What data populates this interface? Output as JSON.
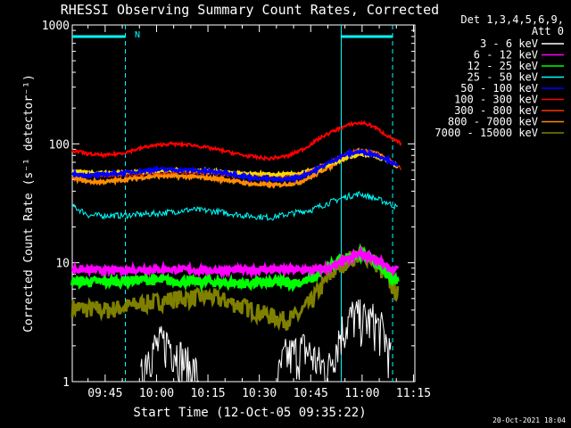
{
  "chart_data": {
    "type": "line",
    "title": "RHESSI Observing Summary Count Rates, Corrected",
    "xlabel": "Start Time (12-Oct-05 09:35:22)",
    "ylabel": "Corrected Count Rate (s⁻¹ detector⁻¹)",
    "yscale": "log",
    "ylim": [
      1,
      1000
    ],
    "xlim_minutes": [
      0,
      100
    ],
    "x_ticks": [
      {
        "min": 9.6,
        "label": "09:45"
      },
      {
        "min": 24.6,
        "label": "10:00"
      },
      {
        "min": 39.6,
        "label": "10:15"
      },
      {
        "min": 54.6,
        "label": "10:30"
      },
      {
        "min": 69.6,
        "label": "10:45"
      },
      {
        "min": 84.6,
        "label": "11:00"
      },
      {
        "min": 99.6,
        "label": "11:15"
      }
    ],
    "y_ticks": [
      {
        "value": 1,
        "label": "1"
      },
      {
        "value": 10,
        "label": "10"
      },
      {
        "value": 100,
        "label": "100"
      },
      {
        "value": 1000,
        "label": "1000"
      }
    ],
    "legend_header": [
      "Det 1,3,4,5,6,9,",
      "Att 0"
    ],
    "legend_position": "right",
    "flag_label": "N",
    "timestamp": "20-Oct-2021 18:04",
    "series": [
      {
        "name": "3 - 6 keV",
        "color": "#ffffff",
        "points": [
          [
            20,
            1
          ],
          [
            22,
            1.8
          ],
          [
            28,
            2.2
          ],
          [
            33,
            1.4
          ],
          [
            36,
            1.2
          ],
          [
            37,
            1
          ]
        ],
        "segments": [
          [
            [
              60,
              1
            ],
            [
              62,
              1.6
            ],
            [
              68,
              1.9
            ],
            [
              72,
              1.4
            ],
            [
              75,
              1.3
            ],
            [
              78,
              2.5
            ],
            [
              82,
              3.6
            ],
            [
              85,
              3.3
            ],
            [
              88,
              3.2
            ],
            [
              91,
              2.5
            ],
            [
              93,
              1.5
            ]
          ]
        ]
      },
      {
        "name": "6 - 12 keV",
        "color": "#ff00ff",
        "points": [
          [
            0,
            8.8
          ],
          [
            10,
            8.6
          ],
          [
            20,
            8.8
          ],
          [
            30,
            8.8
          ],
          [
            40,
            8.6
          ],
          [
            50,
            8.7
          ],
          [
            60,
            8.8
          ],
          [
            66,
            8.7
          ],
          [
            70,
            8.7
          ],
          [
            75,
            9.0
          ],
          [
            80,
            10.5
          ],
          [
            84,
            12.0
          ],
          [
            88,
            11.0
          ],
          [
            92,
            9.0
          ],
          [
            95,
            8.6
          ]
        ]
      },
      {
        "name": "12 - 25 keV",
        "color": "#00ff00",
        "points": [
          [
            0,
            7.0
          ],
          [
            10,
            6.9
          ],
          [
            20,
            7.2
          ],
          [
            30,
            7.0
          ],
          [
            40,
            6.9
          ],
          [
            50,
            6.7
          ],
          [
            60,
            6.8
          ],
          [
            66,
            6.8
          ],
          [
            70,
            7.3
          ],
          [
            75,
            9.3
          ],
          [
            80,
            11.0
          ],
          [
            84,
            12.0
          ],
          [
            88,
            10.5
          ],
          [
            92,
            8.0
          ],
          [
            95,
            7.0
          ]
        ]
      },
      {
        "name": "25 - 50 keV",
        "color": "#00ffff",
        "points": [
          [
            0,
            30
          ],
          [
            5,
            25
          ],
          [
            15,
            25
          ],
          [
            25,
            26
          ],
          [
            35,
            28
          ],
          [
            42,
            27
          ],
          [
            50,
            25
          ],
          [
            58,
            24
          ],
          [
            64,
            26
          ],
          [
            70,
            28
          ],
          [
            75,
            32
          ],
          [
            80,
            36
          ],
          [
            84,
            38
          ],
          [
            88,
            35
          ],
          [
            92,
            32
          ],
          [
            95,
            29
          ]
        ]
      },
      {
        "name": "50 - 100 keV",
        "color": "#0000ff",
        "points": [
          [
            0,
            56
          ],
          [
            5,
            54
          ],
          [
            15,
            57
          ],
          [
            25,
            61
          ],
          [
            35,
            60
          ],
          [
            45,
            57
          ],
          [
            52,
            52
          ],
          [
            60,
            50
          ],
          [
            66,
            52
          ],
          [
            71,
            60
          ],
          [
            76,
            72
          ],
          [
            80,
            82
          ],
          [
            84,
            86
          ],
          [
            88,
            82
          ],
          [
            92,
            74
          ],
          [
            95,
            64
          ]
        ]
      },
      {
        "name": "100 - 300 keV",
        "color": "#ff0000",
        "points": [
          [
            0,
            88
          ],
          [
            5,
            82
          ],
          [
            10,
            80
          ],
          [
            15,
            84
          ],
          [
            22,
            95
          ],
          [
            28,
            100
          ],
          [
            35,
            98
          ],
          [
            42,
            90
          ],
          [
            50,
            80
          ],
          [
            57,
            75
          ],
          [
            63,
            79
          ],
          [
            68,
            92
          ],
          [
            73,
            115
          ],
          [
            78,
            135
          ],
          [
            82,
            148
          ],
          [
            85,
            150
          ],
          [
            88,
            140
          ],
          [
            91,
            122
          ],
          [
            94,
            108
          ],
          [
            96,
            100
          ]
        ]
      },
      {
        "name": "300 - 800 keV",
        "color": "#ff3300",
        "points": [
          [
            0,
            55
          ],
          [
            10,
            54
          ],
          [
            20,
            55
          ],
          [
            30,
            57
          ],
          [
            40,
            56
          ],
          [
            50,
            53
          ],
          [
            60,
            52
          ],
          [
            66,
            54
          ],
          [
            70,
            60
          ],
          [
            75,
            70
          ],
          [
            79,
            80
          ],
          [
            82,
            86
          ],
          [
            86,
            88
          ],
          [
            90,
            80
          ],
          [
            93,
            72
          ],
          [
            96,
            62
          ]
        ]
      },
      {
        "name": "800 - 7000 keV",
        "color": "#ff8c00",
        "points": [
          [
            0,
            52
          ],
          [
            5,
            48
          ],
          [
            10,
            48
          ],
          [
            15,
            50
          ],
          [
            25,
            54
          ],
          [
            35,
            53
          ],
          [
            45,
            50
          ],
          [
            52,
            46
          ],
          [
            60,
            45
          ],
          [
            66,
            47
          ],
          [
            71,
            55
          ],
          [
            76,
            67
          ],
          [
            80,
            80
          ],
          [
            84,
            88
          ],
          [
            88,
            84
          ],
          [
            92,
            74
          ],
          [
            95,
            65
          ]
        ]
      },
      {
        "name": "7000 - 15000 keV",
        "color": "#808000",
        "points": [
          [
            0,
            4.2
          ],
          [
            10,
            4.0
          ],
          [
            20,
            4.5
          ],
          [
            30,
            5.0
          ],
          [
            40,
            5.2
          ],
          [
            48,
            4.5
          ],
          [
            55,
            3.8
          ],
          [
            62,
            3.3
          ],
          [
            66,
            3.6
          ],
          [
            70,
            4.8
          ],
          [
            74,
            7.0
          ],
          [
            78,
            9.5
          ],
          [
            82,
            11.2
          ],
          [
            85,
            12.0
          ],
          [
            88,
            10.5
          ],
          [
            91,
            8.0
          ],
          [
            94,
            6.0
          ],
          [
            95,
            5.5
          ]
        ]
      }
    ],
    "overlays": [
      {
        "name": "yellow-rates",
        "color": "#ffd700",
        "points": [
          [
            0,
            58
          ],
          [
            10,
            57
          ],
          [
            20,
            58
          ],
          [
            30,
            60
          ],
          [
            40,
            59
          ],
          [
            50,
            56
          ],
          [
            60,
            55
          ],
          [
            66,
            56
          ],
          [
            70,
            60
          ],
          [
            75,
            67
          ],
          [
            80,
            76
          ],
          [
            84,
            82
          ],
          [
            88,
            80
          ],
          [
            92,
            72
          ],
          [
            95,
            65
          ]
        ]
      }
    ],
    "intervals": [
      {
        "kind": "night",
        "start_min": 0,
        "end_min": 15.5
      },
      {
        "kind": "night",
        "start_min": 78.5,
        "end_min": 93.5
      }
    ],
    "markers": [
      {
        "style": "dashed",
        "at_min": 15.5
      },
      {
        "style": "solid",
        "at_min": 78.5
      },
      {
        "style": "dashed",
        "at_min": 93.5
      }
    ]
  }
}
